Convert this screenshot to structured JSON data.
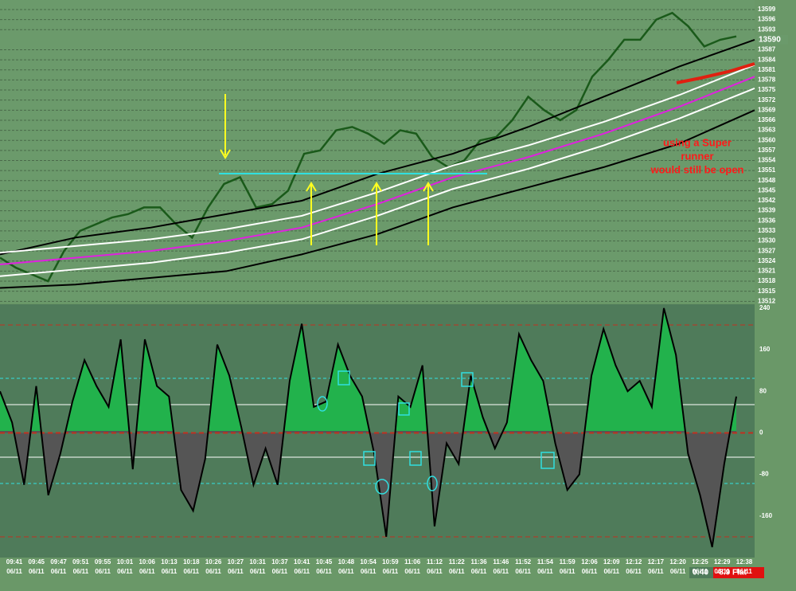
{
  "price_panel": {
    "type": "line",
    "ylim": [
      13511.6,
      13601.85
    ],
    "yticks": [
      13512,
      13515,
      13518,
      13521,
      13524,
      13527,
      13530,
      13533,
      13536,
      13539,
      13542,
      13545,
      13548,
      13551,
      13554,
      13557,
      13560,
      13563,
      13566,
      13569,
      13572,
      13575,
      13578,
      13581,
      13584,
      13587,
      13593,
      13596,
      13599
    ],
    "last_price": 13590,
    "series": [
      {
        "name": "price",
        "color": "#1a5a1a",
        "values": [
          13525,
          13522,
          13520,
          13518,
          13527,
          13533,
          13535,
          13537,
          13538,
          13540,
          13540,
          13535,
          13531,
          13540,
          13547,
          13549,
          13540,
          13541,
          13545,
          13556,
          13557,
          13563,
          13564,
          13562,
          13559,
          13563,
          13562,
          13555,
          13552,
          13554,
          13560,
          13561,
          13566,
          13573,
          13569,
          13566,
          13569,
          13579,
          13584,
          13590,
          13590,
          13596,
          13598,
          13594,
          13588,
          13590,
          13591
        ]
      },
      {
        "name": "upper-outer",
        "color": "#000000",
        "values": [
          13526,
          13531,
          13534,
          13538,
          13542,
          13550,
          13556,
          13564,
          13573,
          13582,
          13590
        ]
      },
      {
        "name": "upper-inner",
        "color": "#ffffff",
        "values": [
          13526.5,
          13528.5,
          13530.5,
          13533.5,
          13537.5,
          13544.5,
          13552.5,
          13558.5,
          13565.5,
          13573.5,
          13582.5
        ]
      },
      {
        "name": "middle",
        "color": "#e020e0",
        "values": [
          13523,
          13525,
          13527,
          13530,
          13534,
          13541,
          13549,
          13555,
          13562,
          13570,
          13579
        ]
      },
      {
        "name": "lower-inner",
        "color": "#ffffff",
        "values": [
          13519.5,
          13521.5,
          13523.5,
          13526.5,
          13530.5,
          13537.5,
          13545.5,
          13551.5,
          13558.5,
          13566.5,
          13575.5
        ]
      },
      {
        "name": "lower-outer",
        "color": "#000000",
        "values": [
          13516,
          13517,
          13519,
          13521,
          13526,
          13532,
          13540,
          13546,
          13552,
          13559,
          13569
        ]
      }
    ],
    "annotation": [
      "using a Super",
      "runner",
      "would still be open"
    ]
  },
  "oscillator": {
    "type": "area",
    "ylim": [
      -240,
      247.5
    ],
    "yticks": [
      240,
      160,
      80,
      0,
      -80,
      -160
    ],
    "values": [
      80,
      20,
      -100,
      90,
      -120,
      -40,
      60,
      140,
      90,
      50,
      180,
      -70,
      180,
      90,
      70,
      -110,
      -150,
      -50,
      170,
      110,
      10,
      -100,
      -30,
      -100,
      100,
      210,
      50,
      60,
      170,
      110,
      70,
      -40,
      -200,
      70,
      50,
      130,
      -180,
      -20,
      -60,
      110,
      30,
      -30,
      20,
      190,
      140,
      100,
      -20,
      -110,
      -80,
      110,
      200,
      130,
      80,
      100,
      50,
      240,
      150,
      -40,
      -120,
      -220,
      -60,
      70
    ]
  },
  "time_axis": {
    "times": [
      "09:41",
      "09:45",
      "09:47",
      "09:51",
      "09:55",
      "10:01",
      "10:06",
      "10:13",
      "10:18",
      "10:26",
      "10:27",
      "10:31",
      "10:37",
      "10:41",
      "10:45",
      "10:48",
      "10:54",
      "10:59",
      "11:06",
      "11:12",
      "11:22",
      "11:36",
      "11:46",
      "11:52",
      "11:54",
      "11:59",
      "12:06",
      "12:09",
      "12:12",
      "12:17",
      "12:20",
      "12:25",
      "12:29",
      "12:38"
    ],
    "date": "06/11"
  },
  "status": {
    "timer": "0:40",
    "position": "-8.9 Flat"
  }
}
